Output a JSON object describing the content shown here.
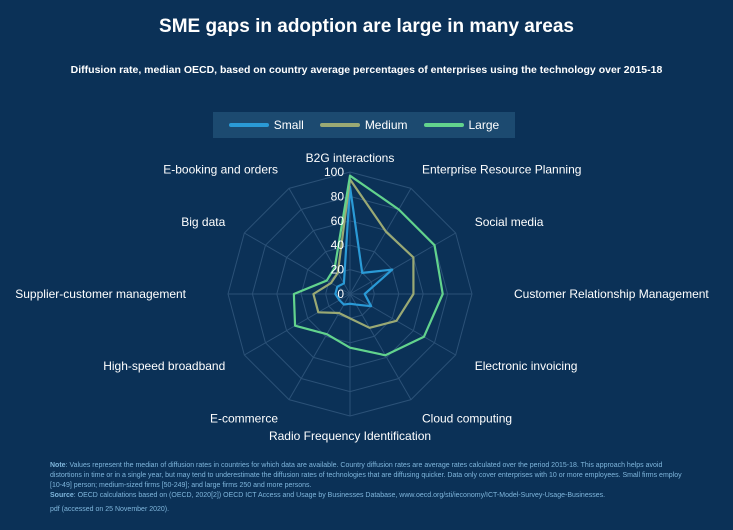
{
  "title": "SME gaps in adoption are large in many areas",
  "subtitle": "Diffusion rate, median OECD, based on country average percentages of enterprises using the technology over 2015-18",
  "colors": {
    "background": "#0b3157",
    "grid": "#2b5177",
    "small": "#2a9ad6",
    "medium": "#9aa974",
    "large": "#62d38d",
    "footnote": "#7fb6dc"
  },
  "chart_data": {
    "type": "radar",
    "categories": [
      "B2G interactions",
      "Enterprise Resource Planning",
      "Social media",
      "Customer Relationship Management",
      "Electronic invoicing",
      "Cloud computing",
      "Radio Frequency Identification",
      "E-commerce",
      "High-speed broadband",
      "Supplier-customer management",
      "Big data",
      "E-booking and orders"
    ],
    "rlim": [
      0,
      100
    ],
    "ticks": [
      "100",
      "80",
      "60",
      "40",
      "20",
      "0"
    ],
    "series": [
      {
        "name": "Small",
        "values": [
          88,
          20,
          40,
          12,
          20,
          10,
          8,
          10,
          10,
          12,
          12,
          10
        ]
      },
      {
        "name": "Medium",
        "values": [
          94,
          59,
          60,
          52,
          44,
          32,
          20,
          18,
          30,
          30,
          18,
          20
        ]
      },
      {
        "name": "Large",
        "values": [
          97,
          80,
          80,
          76,
          70,
          58,
          44,
          38,
          52,
          46,
          22,
          25
        ]
      }
    ],
    "legend_position": "top"
  },
  "footnote": {
    "note_label": "Note",
    "note_text": ": Values represent the median of diffusion rates in countries for which data are available. Country diffusion rates are average rates calculated over the period 2015-18. This approach helps avoid distortions in time or in a single year, but may tend to underestimate the diffusion rates of technologies that are diffusing quicker. Data only cover enterprises with 10 or more employees. Small firms employ [10-49] person; medium-sized firms [50-249]; and large firms 250 and more persons.",
    "source_label": "Source",
    "source_text": ": OECD calculations based on (OECD, 2020[2]) OECD ICT Access and Usage by Businesses Database, www.oecd.org/sti/ieconomy/ICT-Model-Survey-Usage-Businesses.",
    "access_text": "pdf (accessed on 25 November 2020)."
  }
}
